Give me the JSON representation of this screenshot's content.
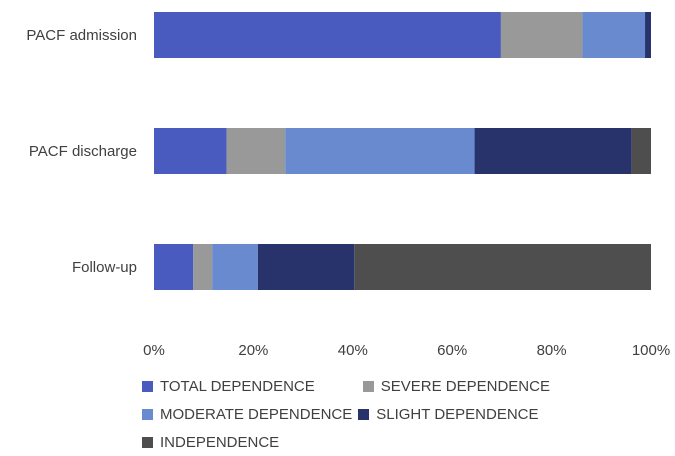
{
  "chart_data": {
    "type": "bar",
    "orientation": "horizontal",
    "stacked": true,
    "normalized": true,
    "categories": [
      "PACF admission",
      "PACF discharge",
      "Follow-up"
    ],
    "series": [
      {
        "name": "TOTAL DEPENDENCE",
        "color": "#4A5BC0",
        "values": [
          69.8,
          14.6,
          7.9
        ]
      },
      {
        "name": "SEVERE DEPENDENCE",
        "color": "#999999",
        "values": [
          16.4,
          11.8,
          3.8
        ]
      },
      {
        "name": "MODERATE DEPENDENCE",
        "color": "#6A8ACF",
        "values": [
          12.6,
          38.1,
          9.2
        ]
      },
      {
        "name": "SLIGHT DEPENDENCE",
        "color": "#28336B",
        "values": [
          1.2,
          31.6,
          19.4
        ]
      },
      {
        "name": "INDEPENDENCE",
        "color": "#4E4E4E",
        "values": [
          0.0,
          3.9,
          59.7
        ]
      }
    ],
    "x_ticks": [
      "0%",
      "20%",
      "40%",
      "60%",
      "80%",
      "100%"
    ],
    "xlim": [
      0,
      100
    ],
    "grid": false,
    "legend_position": "bottom"
  }
}
